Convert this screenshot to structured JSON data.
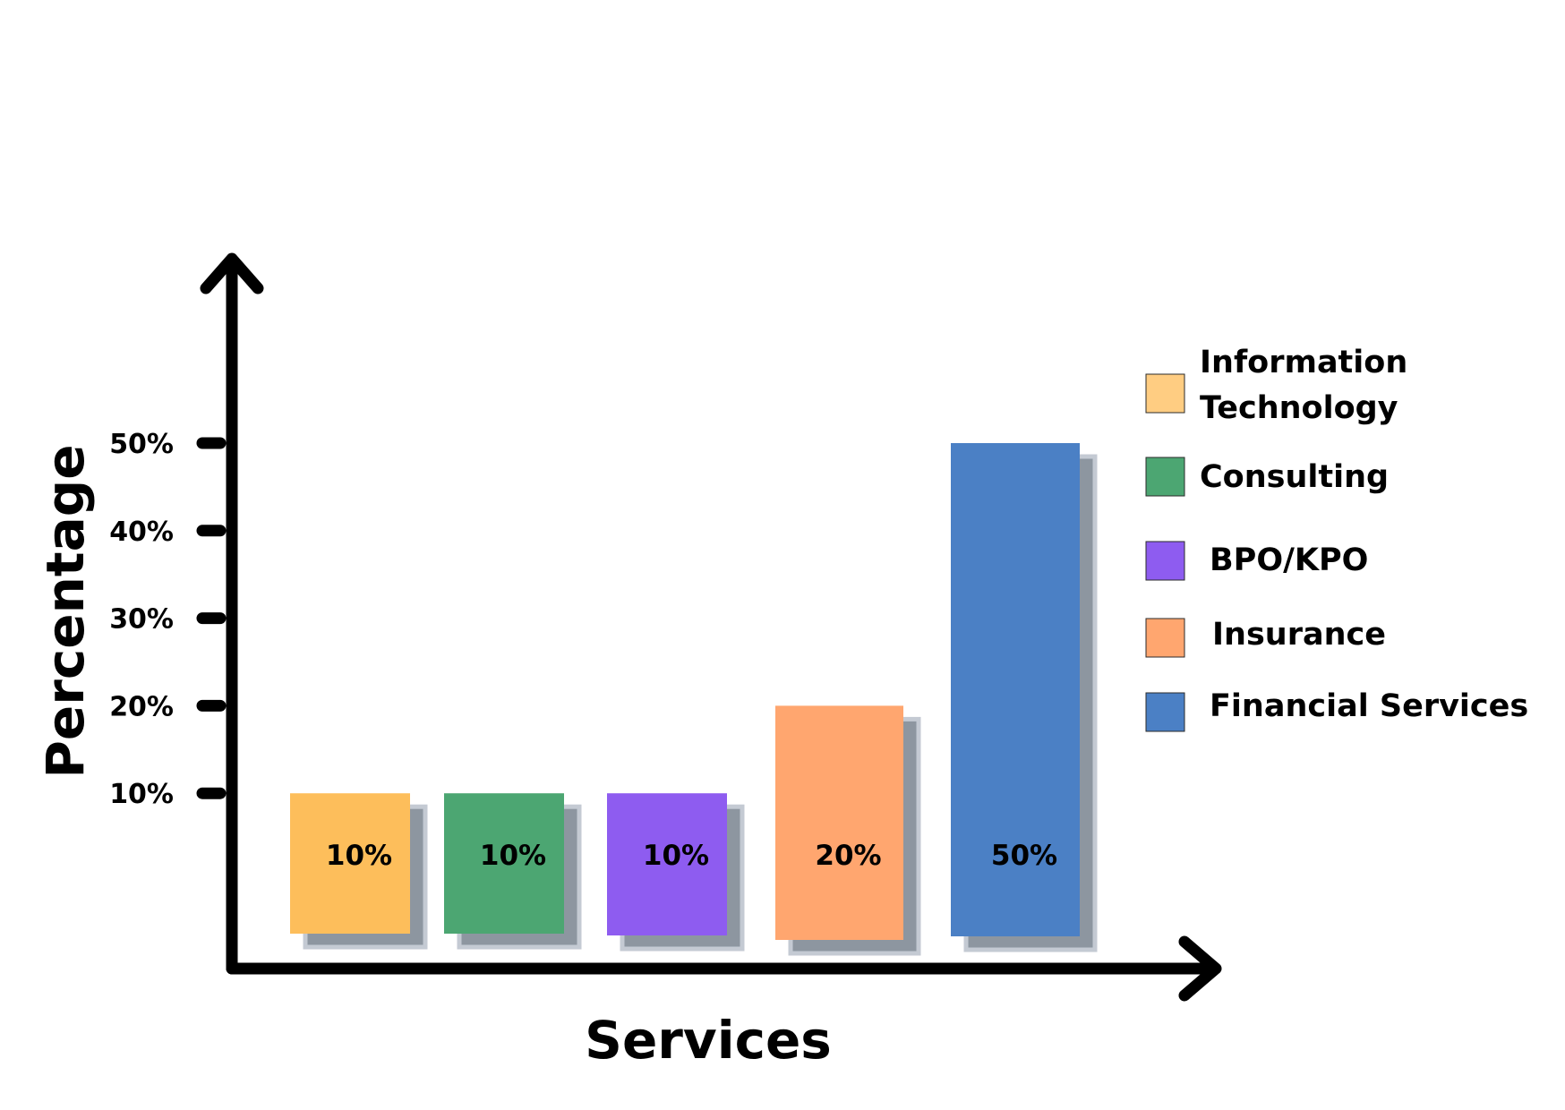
{
  "chart_data": {
    "type": "bar",
    "title": "",
    "xlabel": "Services",
    "ylabel": "Percentage",
    "ylim": [
      0,
      50
    ],
    "yticks": [
      "10%",
      "20%",
      "30%",
      "40%",
      "50%"
    ],
    "categories": [
      "Information Technology",
      "Consulting",
      "BPO/KPO",
      "Insurance",
      "Financial Services"
    ],
    "values": [
      10,
      10,
      10,
      20,
      50
    ],
    "data_labels": [
      "10%",
      "10%",
      "10%",
      "20%",
      "50%"
    ],
    "colors": [
      "#FDBE5B",
      "#4CA672",
      "#8E5CF0",
      "#FFA66F",
      "#4B80C5"
    ],
    "legend": {
      "placement": "right",
      "items": [
        {
          "lines": [
            "Information",
            "Technology"
          ],
          "color": "#FFCD82"
        },
        {
          "lines": [
            "Consulting"
          ],
          "color": "#4CA672"
        },
        {
          "lines": [
            "BPO/KPO"
          ],
          "color": "#8E5CF0"
        },
        {
          "lines": [
            "Insurance"
          ],
          "color": "#FFA66F"
        },
        {
          "lines": [
            "Financial Services"
          ],
          "color": "#4B80C5"
        }
      ]
    },
    "grid": false
  }
}
